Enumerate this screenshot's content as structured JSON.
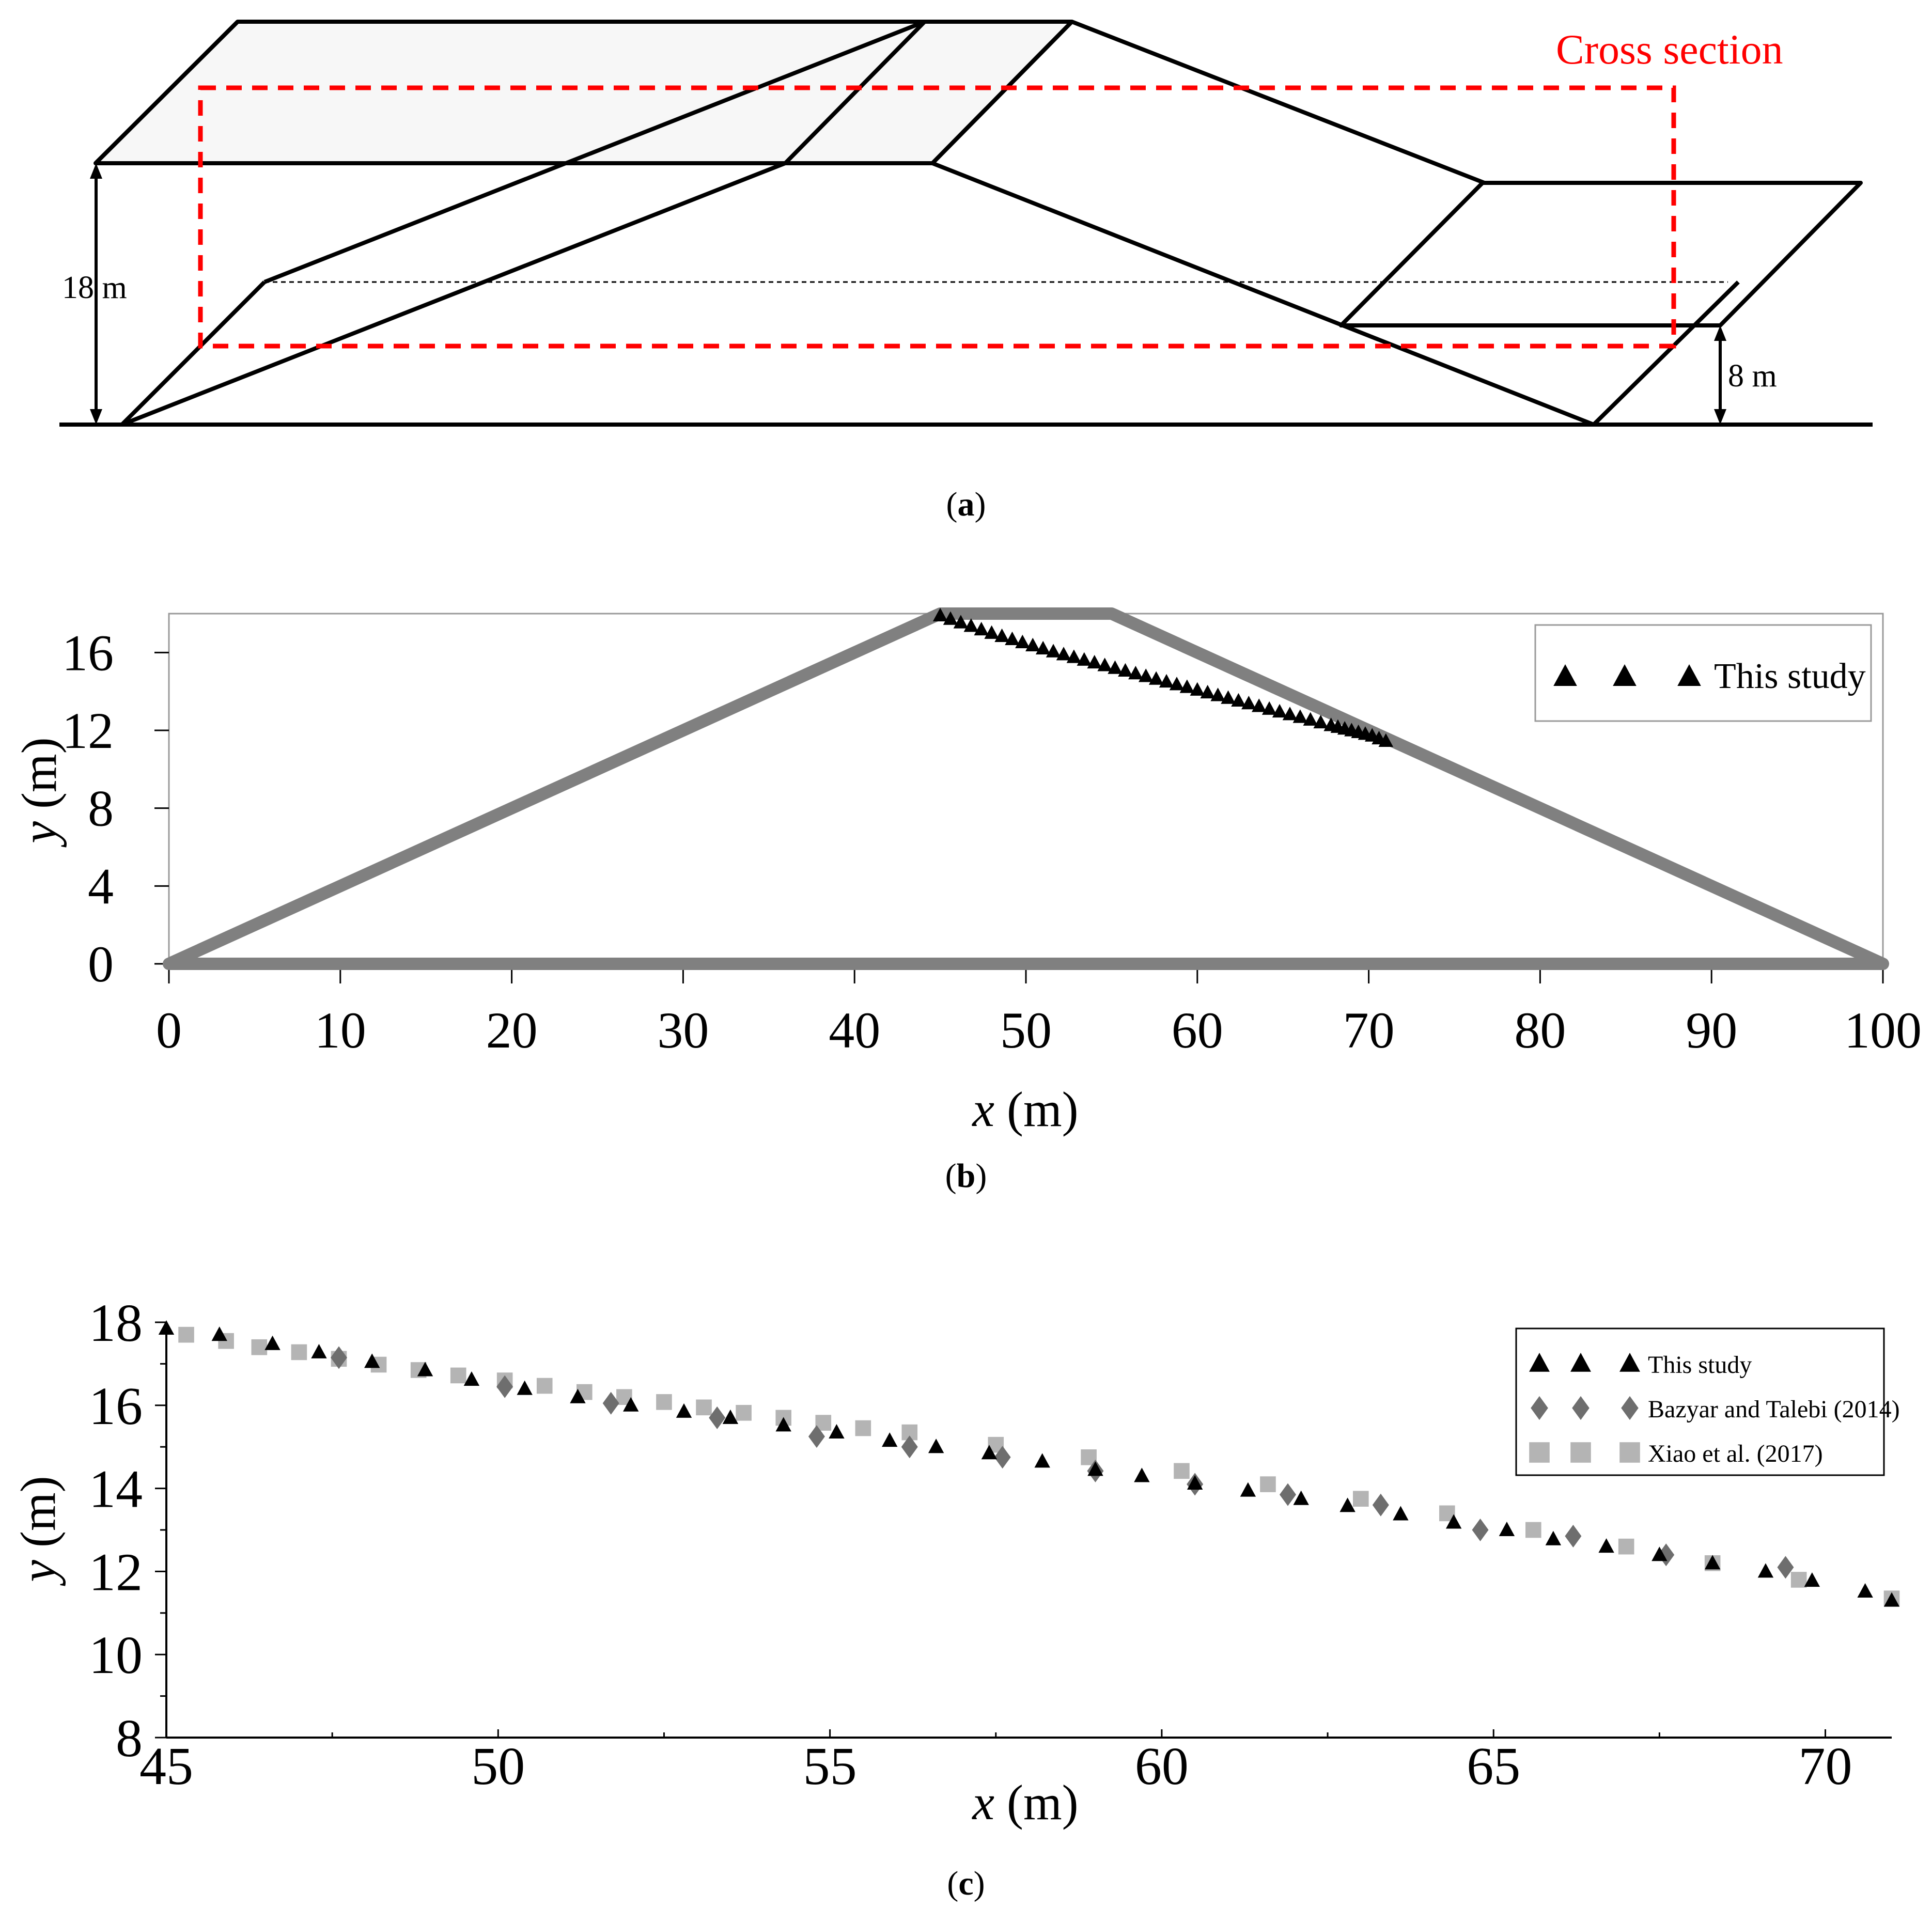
{
  "panel_a": {
    "caption": "(a)",
    "caption_letter": "a",
    "cross_section_label": "Cross section",
    "height_left_label": "18 m",
    "height_right_label": "8 m",
    "colors": {
      "outline": "#000000",
      "cross_section": "#ff0000"
    }
  },
  "panel_b": {
    "caption_letter": "b"
  },
  "panel_c": {
    "caption_letter": "c"
  },
  "chart_data": [
    {
      "id": "b",
      "type": "scatter",
      "title": "",
      "xlabel_italic": "x",
      "xlabel_unit": " (m)",
      "ylabel_italic": "y",
      "ylabel_unit": " (m)",
      "xlim": [
        0,
        100
      ],
      "ylim": [
        0,
        18
      ],
      "xticks": [
        0,
        10,
        20,
        30,
        40,
        50,
        60,
        70,
        80,
        90,
        100
      ],
      "yticks": [
        0,
        4,
        8,
        12,
        16
      ],
      "grid": false,
      "legend_position": "top-right",
      "dam_outline": {
        "color": "#808080",
        "x": [
          0,
          45,
          55,
          100,
          0
        ],
        "y": [
          0,
          18,
          18,
          0,
          0
        ]
      },
      "series": [
        {
          "name": "This study",
          "marker": "triangle",
          "color": "#000000",
          "x": [
            45.0,
            45.6,
            46.2,
            46.8,
            47.4,
            48.0,
            48.6,
            49.2,
            49.8,
            50.4,
            51.0,
            51.6,
            52.2,
            52.8,
            53.4,
            54.0,
            54.6,
            55.2,
            55.8,
            56.4,
            57.0,
            57.6,
            58.2,
            58.8,
            59.4,
            60.0,
            60.6,
            61.2,
            61.8,
            62.4,
            63.0,
            63.6,
            64.2,
            64.8,
            65.4,
            66.0,
            66.6,
            67.2,
            67.8,
            68.2,
            68.6,
            69.0,
            69.4,
            69.8,
            70.2,
            70.6,
            71.0
          ],
          "y": [
            17.9,
            17.72,
            17.54,
            17.36,
            17.18,
            17.0,
            16.84,
            16.68,
            16.52,
            16.36,
            16.2,
            16.05,
            15.9,
            15.76,
            15.62,
            15.48,
            15.34,
            15.2,
            15.06,
            14.92,
            14.78,
            14.64,
            14.5,
            14.36,
            14.22,
            14.08,
            13.94,
            13.8,
            13.66,
            13.52,
            13.38,
            13.24,
            13.1,
            12.96,
            12.82,
            12.68,
            12.54,
            12.4,
            12.26,
            12.17,
            12.08,
            11.99,
            11.9,
            11.81,
            11.72,
            11.58,
            11.45
          ]
        }
      ]
    },
    {
      "id": "c",
      "type": "scatter",
      "title": "",
      "xlabel_italic": "x",
      "xlabel_unit": " (m)",
      "ylabel_italic": "y",
      "ylabel_unit": " (m)",
      "xlim": [
        45,
        71
      ],
      "ylim": [
        8,
        18
      ],
      "xticks": [
        45,
        50,
        55,
        60,
        65,
        70
      ],
      "yticks": [
        8,
        10,
        12,
        14,
        16,
        18
      ],
      "grid": false,
      "legend_position": "top-right",
      "series": [
        {
          "name": "This study",
          "marker": "triangle",
          "color": "#000000",
          "x": [
            45.0,
            45.8,
            46.6,
            47.3,
            48.1,
            48.9,
            49.6,
            50.4,
            51.2,
            52.0,
            52.8,
            53.5,
            54.3,
            55.1,
            55.9,
            56.6,
            57.4,
            58.2,
            59.0,
            59.7,
            60.5,
            61.3,
            62.1,
            62.8,
            63.6,
            64.4,
            65.2,
            65.9,
            66.7,
            67.5,
            68.3,
            69.1,
            69.8,
            70.6,
            71.0
          ],
          "y": [
            17.85,
            17.7,
            17.48,
            17.28,
            17.05,
            16.85,
            16.62,
            16.4,
            16.2,
            16.0,
            15.85,
            15.7,
            15.52,
            15.35,
            15.15,
            15.0,
            14.85,
            14.65,
            14.45,
            14.3,
            14.12,
            13.95,
            13.75,
            13.58,
            13.38,
            13.18,
            13.0,
            12.78,
            12.6,
            12.4,
            12.2,
            12.0,
            11.78,
            11.52,
            11.3
          ]
        },
        {
          "name": "Bazyar and Talebi (2014)",
          "marker": "diamond",
          "color": "#6e6e6e",
          "x": [
            47.6,
            50.1,
            51.7,
            53.3,
            54.8,
            56.2,
            57.6,
            59.0,
            60.5,
            61.9,
            63.3,
            64.8,
            66.2,
            67.6,
            69.4
          ],
          "y": [
            17.15,
            16.45,
            16.05,
            15.7,
            15.25,
            15.0,
            14.75,
            14.42,
            14.1,
            13.85,
            13.6,
            13.0,
            12.85,
            12.4,
            12.1
          ]
        },
        {
          "name": "Xiao et al. (2017)",
          "marker": "square",
          "color": "#b4b4b4",
          "x": [
            45.3,
            45.9,
            46.4,
            47.0,
            47.6,
            48.2,
            48.8,
            49.4,
            50.1,
            50.7,
            51.3,
            51.9,
            52.5,
            53.1,
            53.7,
            54.3,
            54.9,
            55.5,
            56.2,
            57.5,
            58.9,
            60.3,
            61.6,
            63.0,
            64.3,
            65.6,
            67.0,
            68.3,
            69.6,
            71.0
          ],
          "y": [
            17.7,
            17.55,
            17.4,
            17.28,
            17.12,
            16.98,
            16.85,
            16.72,
            16.6,
            16.47,
            16.32,
            16.2,
            16.08,
            15.95,
            15.82,
            15.7,
            15.58,
            15.45,
            15.35,
            15.05,
            14.75,
            14.42,
            14.1,
            13.75,
            13.4,
            13.0,
            12.6,
            12.2,
            11.8,
            11.35
          ]
        }
      ]
    }
  ]
}
